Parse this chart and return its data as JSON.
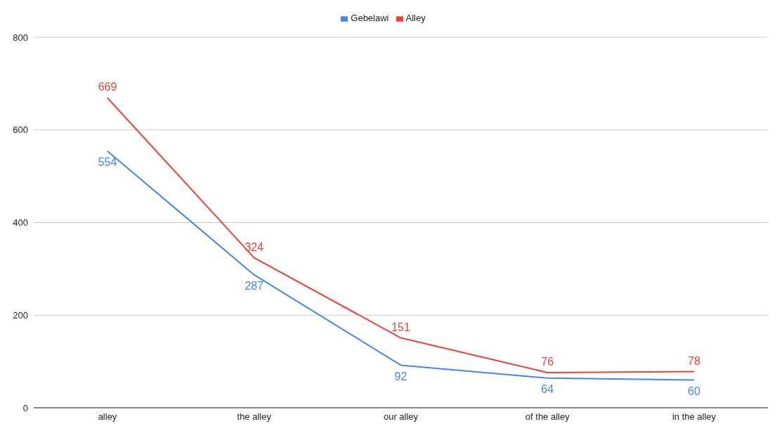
{
  "chart_data": {
    "type": "line",
    "categories": [
      "alley",
      "the alley",
      "our alley",
      "of the alley",
      "in the alley"
    ],
    "series": [
      {
        "name": "Gebelawi",
        "color": "#4285f4",
        "values": [
          554,
          287,
          92,
          64,
          60
        ]
      },
      {
        "name": "Alley",
        "color": "#ea4335",
        "values": [
          669,
          324,
          151,
          76,
          78
        ]
      }
    ],
    "ylim": [
      0,
      800
    ],
    "yticks": [
      0,
      200,
      400,
      600,
      800
    ],
    "grid": "y",
    "legend": "top",
    "data_labels": true
  }
}
